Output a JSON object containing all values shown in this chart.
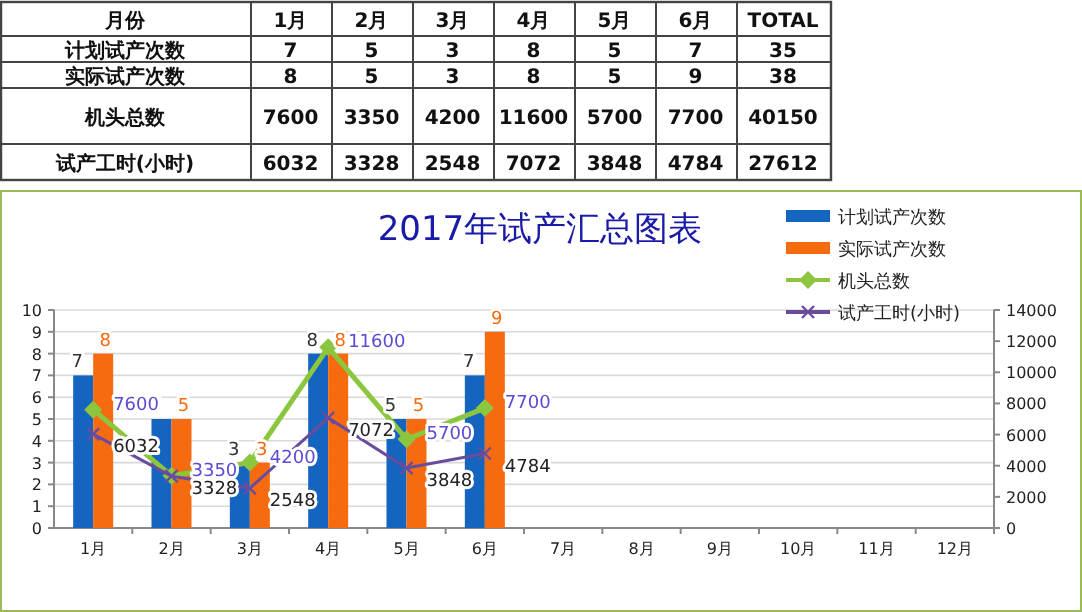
{
  "chart_data": [
    {
      "type": "heatmap",
      "ylabel": "月份",
      "categories": [
        "1月",
        "2月",
        "3月",
        "4月",
        "5月",
        "6月",
        "TOTAL"
      ],
      "data_labels": true,
      "y_categories": [
        "计划试产次数",
        "实际试产次数",
        "机头总数",
        "试产工时(小时)"
      ],
      "cells": [
        [
          7,
          5,
          3,
          8,
          5,
          7,
          35
        ],
        [
          8,
          5,
          3,
          8,
          5,
          9,
          38
        ],
        [
          7600,
          3350,
          4200,
          11600,
          5700,
          7700,
          40150
        ],
        [
          6032,
          3328,
          2548,
          7072,
          3848,
          4784,
          27612
        ]
      ]
    },
    {
      "type": "bar",
      "title": "2017年试产汇总图表",
      "categories": [
        "1月",
        "2月",
        "3月",
        "4月",
        "5月",
        "6月",
        "7月",
        "8月",
        "9月",
        "10月",
        "11月",
        "12月"
      ],
      "ylim": [
        0,
        10
      ],
      "yticks": [
        0,
        1,
        2,
        3,
        4,
        5,
        6,
        7,
        8,
        9,
        10
      ],
      "y2lim": [
        0,
        14000
      ],
      "y2ticks": [
        0,
        2000,
        4000,
        6000,
        8000,
        10000,
        12000,
        14000
      ],
      "grid": "y",
      "legend": "top right",
      "data_labels": true,
      "series": [
        {
          "name": "计划试产次数",
          "color": "#1565c0",
          "values": [
            7,
            5,
            3,
            8,
            5,
            7,
            null,
            null,
            null,
            null,
            null,
            null
          ]
        },
        {
          "name": "实际试产次数",
          "color": "#f76b10",
          "values": [
            8,
            5,
            3,
            8,
            5,
            9,
            null,
            null,
            null,
            null,
            null,
            null
          ]
        },
        {
          "name": "机头总数",
          "type": "line",
          "axis": "y2",
          "marker": "diamond",
          "color": "#8cc63f",
          "values": [
            7600,
            3350,
            4200,
            11600,
            5700,
            7700,
            null,
            null,
            null,
            null,
            null,
            null
          ]
        },
        {
          "name": "试产工时(小时)",
          "type": "line",
          "axis": "y2",
          "marker": "cross",
          "color": "#6a4c9c",
          "values": [
            6032,
            3328,
            2548,
            7072,
            3848,
            4784,
            null,
            null,
            null,
            null,
            null,
            null
          ]
        }
      ]
    }
  ]
}
